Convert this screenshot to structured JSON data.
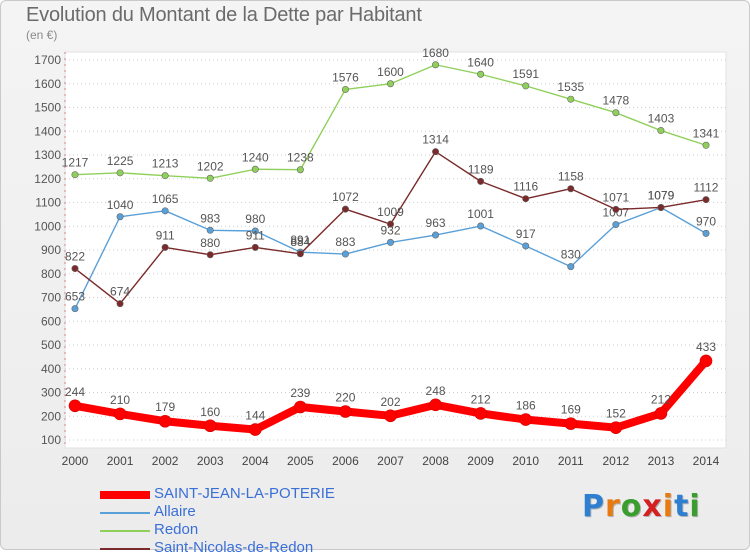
{
  "header": {
    "title": "Evolution du Montant de la Dette par Habitant",
    "subtitle": "(en €)"
  },
  "logo": {
    "text": "Proxiti",
    "letter_colors": [
      "#2f7fd0",
      "#e87a12",
      "#3a9e2f",
      "#d42020",
      "#e87a12",
      "#2f7fd0",
      "#3a9e2f"
    ]
  },
  "chart_data": {
    "type": "line",
    "title": "Evolution du Montant de la Dette par Habitant",
    "subtitle": "(en €)",
    "x": [
      "2000",
      "2001",
      "2002",
      "2003",
      "2004",
      "2005",
      "2006",
      "2007",
      "2008",
      "2009",
      "2010",
      "2011",
      "2012",
      "2013",
      "2014"
    ],
    "ylim": [
      100,
      1700
    ],
    "yticks": [
      100,
      200,
      300,
      400,
      500,
      600,
      700,
      800,
      900,
      1000,
      1100,
      1200,
      1300,
      1400,
      1500,
      1600,
      1700
    ],
    "grid": "horizontal-dotted",
    "legend_position": "bottom-left",
    "series": [
      {
        "name": "SAINT-JEAN-LA-POTERIE",
        "color": "#ff0000",
        "marker": "#ff0000",
        "label_color": "#555555",
        "highlight": true,
        "values": [
          244,
          210,
          179,
          160,
          144,
          239,
          220,
          202,
          248,
          212,
          186,
          169,
          152,
          212,
          433
        ]
      },
      {
        "name": "Allaire",
        "color": "#5aa0d8",
        "marker": "#5aa0d8",
        "label_color": "#555555",
        "highlight": false,
        "values": [
          653,
          1040,
          1065,
          983,
          980,
          891,
          883,
          932,
          963,
          1001,
          917,
          830,
          1007,
          1079,
          970
        ]
      },
      {
        "name": "Redon",
        "color": "#8fd05a",
        "marker": "#8fd05a",
        "label_color": "#555555",
        "highlight": false,
        "values": [
          1217,
          1225,
          1213,
          1202,
          1240,
          1238,
          1576,
          1600,
          1680,
          1640,
          1591,
          1535,
          1478,
          1403,
          1341
        ]
      },
      {
        "name": "Saint-Nicolas-de-Redon",
        "color": "#7a2a2a",
        "marker": "#7a2a2a",
        "label_color": "#555555",
        "highlight": false,
        "values": [
          822,
          674,
          911,
          880,
          911,
          884,
          1072,
          1009,
          1314,
          1189,
          1116,
          1158,
          1071,
          1079,
          1112
        ]
      }
    ]
  }
}
